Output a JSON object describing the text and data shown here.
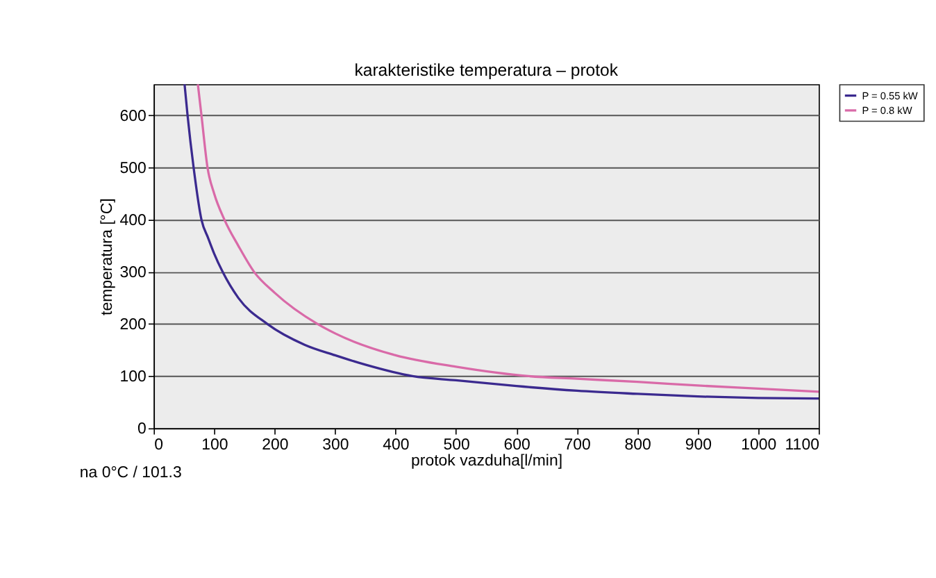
{
  "chart_data": {
    "type": "line",
    "title": "karakteristike temperatura – protok",
    "xlabel": "protok vazduha[l/min]",
    "ylabel": "temperatura [°C]",
    "annotations": [
      "na 0°C / 101.3"
    ],
    "xlim": [
      0,
      1100
    ],
    "xticks": [
      0,
      100,
      200,
      300,
      400,
      500,
      600,
      700,
      800,
      900,
      1000,
      1100
    ],
    "ylim": [
      0,
      660
    ],
    "yticks": [
      0,
      100,
      200,
      300,
      400,
      500,
      600
    ],
    "grid": "y",
    "legend": "right",
    "line_style": "solid",
    "marker": "none",
    "series": [
      {
        "name": "P = 0.55 kW",
        "color": "#3b2a8f",
        "x": [
          51,
          56,
          66,
          79,
          90,
          100,
          114,
          140,
          188,
          250,
          300,
          350,
          428,
          500,
          600,
          700,
          800,
          900,
          1000,
          1100
        ],
        "values": [
          660,
          600,
          500,
          400,
          365,
          335,
          300,
          250,
          200,
          160,
          140,
          122,
          100,
          92,
          81,
          72,
          66,
          61,
          58,
          57
        ]
      },
      {
        "name": "P = 0.8 kW",
        "color": "#d96aa8",
        "x": [
          73,
          79,
          89,
          100,
          117,
          140,
          166,
          200,
          271,
          300,
          400,
          500,
          620,
          700,
          800,
          900,
          1000,
          1100
        ],
        "values": [
          660,
          600,
          500,
          450,
          400,
          350,
          300,
          260,
          200,
          182,
          140,
          118,
          100,
          95,
          89,
          82,
          76,
          70
        ]
      }
    ]
  }
}
